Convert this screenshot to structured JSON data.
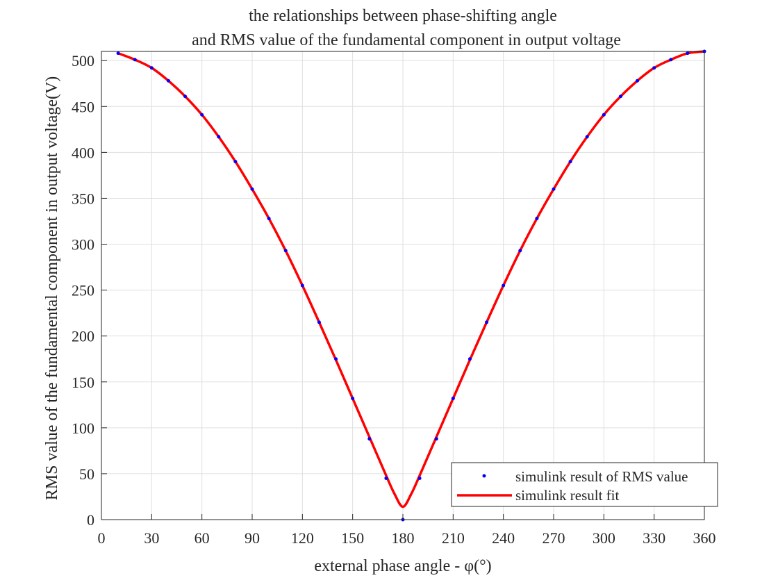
{
  "chart_data": {
    "type": "line",
    "title": [
      "the relationships between phase-shifting angle",
      "and RMS value of the fundamental component in output voltage"
    ],
    "xlabel": "external phase angle - φ(°)",
    "ylabel": "RMS value of the fundamental component in output voltage(V)",
    "xlim": [
      0,
      360
    ],
    "ylim": [
      0,
      510
    ],
    "xticks": [
      "0",
      "30",
      "60",
      "90",
      "120",
      "150",
      "180",
      "210",
      "240",
      "270",
      "300",
      "330",
      "360"
    ],
    "yticks": [
      "0",
      "50",
      "100",
      "150",
      "200",
      "250",
      "300",
      "350",
      "400",
      "450",
      "500"
    ],
    "grid": true,
    "legend_position": "bottom-right",
    "series": [
      {
        "name": "simulink result of RMS value",
        "style": "markers",
        "color": "#0000ff",
        "x": [
          10,
          20,
          30,
          40,
          50,
          60,
          70,
          80,
          90,
          100,
          110,
          120,
          130,
          140,
          150,
          160,
          170,
          180,
          190,
          200,
          210,
          220,
          230,
          240,
          250,
          260,
          270,
          280,
          290,
          300,
          310,
          320,
          330,
          340,
          350,
          360
        ],
        "y": [
          508,
          501,
          492,
          478,
          461,
          441,
          417,
          390,
          360,
          328,
          293,
          255,
          215,
          175,
          132,
          88,
          45,
          0,
          45,
          88,
          132,
          175,
          215,
          255,
          293,
          328,
          360,
          390,
          417,
          441,
          461,
          478,
          492,
          501,
          508,
          510
        ]
      },
      {
        "name": "simulink result fit",
        "style": "line",
        "color": "#ff0000",
        "x": [
          10,
          20,
          30,
          40,
          50,
          60,
          70,
          80,
          90,
          100,
          110,
          120,
          130,
          140,
          150,
          160,
          165,
          170,
          175,
          180,
          185,
          190,
          195,
          200,
          210,
          220,
          230,
          240,
          250,
          260,
          270,
          280,
          290,
          300,
          310,
          320,
          330,
          340,
          350,
          360
        ],
        "y": [
          508,
          501,
          492,
          478,
          461,
          441,
          417,
          390,
          360,
          328,
          293,
          255,
          215,
          174,
          132,
          90,
          69,
          48,
          28,
          14,
          28,
          48,
          69,
          90,
          132,
          174,
          215,
          255,
          293,
          328,
          360,
          390,
          417,
          441,
          461,
          478,
          492,
          501,
          508,
          510
        ]
      }
    ]
  }
}
